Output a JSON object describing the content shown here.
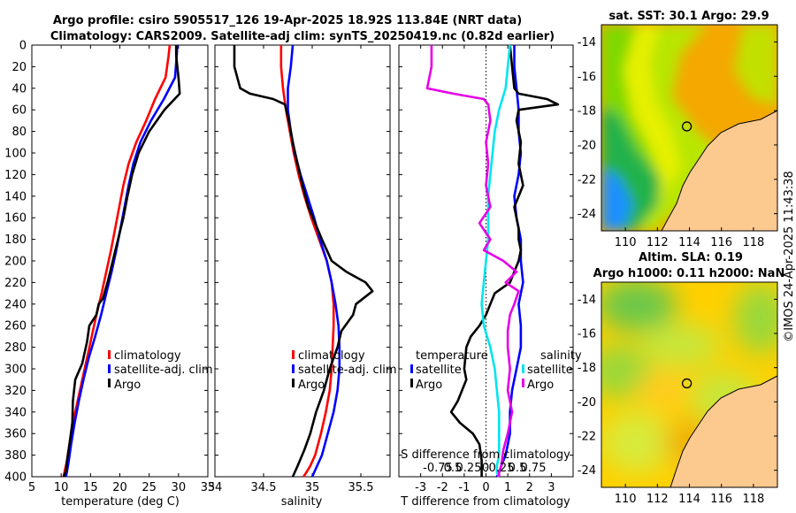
{
  "header": {
    "title_line1": "Argo profile: csiro 5905517_126 19-Apr-2025 18.92S 113.84E (NRT data)",
    "title_line2": "Climatology: CARS2009. Satellite-adj clim: synTS_20250419.nc (0.82d earlier)"
  },
  "side_stamp": "©IMOS 24-Apr-2025 11:43:38",
  "colors": {
    "climatology": "#ff0000",
    "satellite": "#0000ff",
    "argo": "#000000",
    "sat_diff_t": "#0000ff",
    "sat_diff_s": "#00e5ee",
    "argo_diff_s": "#e600e6"
  },
  "chart_data": [
    {
      "type": "line",
      "title": "",
      "xlabel": "temperature (deg C)",
      "ylabel": "",
      "xlim": [
        5,
        35
      ],
      "ylim": [
        400,
        0
      ],
      "xticks": [
        "5",
        "10",
        "15",
        "20",
        "25",
        "30",
        "35"
      ],
      "yticks": [
        "0",
        "20",
        "40",
        "60",
        "80",
        "100",
        "120",
        "140",
        "160",
        "180",
        "200",
        "220",
        "240",
        "260",
        "280",
        "300",
        "320",
        "340",
        "360",
        "380",
        "400"
      ],
      "legend": [
        "climatology",
        "satellite-adj. clim",
        "Argo"
      ],
      "series": [
        {
          "name": "climatology",
          "x": [
            28.5,
            28.3,
            27.8,
            26.0,
            24.5,
            22.8,
            21.5,
            20.6,
            19.9,
            19.2,
            18.5,
            17.7,
            16.9,
            16.0,
            15.2,
            14.4,
            13.6,
            12.8,
            12.0,
            11.4,
            11.0,
            10.6,
            10.4
          ],
          "y": [
            0,
            10,
            30,
            50,
            70,
            90,
            110,
            130,
            150,
            170,
            190,
            210,
            230,
            250,
            270,
            290,
            310,
            330,
            350,
            370,
            385,
            395,
            400
          ]
        },
        {
          "name": "satellite-adj. clim",
          "x": [
            29.8,
            29.7,
            29.4,
            27.5,
            25.3,
            23.5,
            22.3,
            21.5,
            20.8,
            20.1,
            19.4,
            18.6,
            17.7,
            16.8,
            15.8,
            14.7,
            13.8,
            13.0,
            12.3,
            11.7,
            11.3,
            11.0,
            10.8
          ],
          "y": [
            0,
            10,
            30,
            50,
            70,
            90,
            110,
            130,
            150,
            170,
            190,
            210,
            230,
            250,
            270,
            290,
            310,
            330,
            350,
            370,
            385,
            395,
            400
          ]
        },
        {
          "name": "Argo",
          "x": [
            29.6,
            29.6,
            29.8,
            30.0,
            30.2,
            27.6,
            25.0,
            23.2,
            22.1,
            21.3,
            20.6,
            19.7,
            18.8,
            17.9,
            17.1,
            16.4,
            16.0,
            14.8,
            14.4,
            13.6,
            12.4,
            12.0,
            11.9,
            11.4,
            11.0,
            10.8,
            10.6,
            10.4
          ],
          "y": [
            0,
            10,
            20,
            30,
            45,
            60,
            80,
            100,
            120,
            140,
            160,
            180,
            200,
            220,
            235,
            240,
            250,
            260,
            275,
            295,
            310,
            330,
            350,
            370,
            385,
            395,
            398,
            400
          ]
        }
      ]
    },
    {
      "type": "line",
      "title": "",
      "xlabel": "salinity",
      "xlim": [
        34,
        35.8
      ],
      "ylim": [
        400,
        0
      ],
      "xticks": [
        "34",
        "34.5",
        "35",
        "35.5"
      ],
      "legend": [
        "climatology",
        "satellite-adj. clim",
        "Argo"
      ],
      "series": [
        {
          "name": "climatology",
          "x": [
            34.68,
            34.68,
            34.7,
            34.73,
            34.77,
            34.81,
            34.86,
            34.92,
            34.99,
            35.07,
            35.15,
            35.2,
            35.22,
            35.22,
            35.21,
            35.2,
            35.18,
            35.14,
            35.09,
            35.03,
            34.98,
            34.94,
            34.91
          ],
          "y": [
            0,
            20,
            40,
            60,
            80,
            100,
            120,
            140,
            160,
            180,
            200,
            220,
            240,
            260,
            280,
            300,
            320,
            340,
            360,
            380,
            390,
            396,
            400
          ]
        },
        {
          "name": "satellite-adj. clim",
          "x": [
            34.8,
            34.78,
            34.75,
            34.75,
            34.78,
            34.82,
            34.88,
            34.95,
            35.02,
            35.08,
            35.15,
            35.2,
            35.24,
            35.27,
            35.28,
            35.28,
            35.26,
            35.22,
            35.16,
            35.1,
            35.05,
            35.02,
            35.0
          ],
          "y": [
            0,
            20,
            40,
            60,
            80,
            100,
            120,
            140,
            160,
            180,
            200,
            220,
            240,
            260,
            280,
            300,
            320,
            340,
            360,
            380,
            390,
            396,
            400
          ]
        },
        {
          "name": "Argo",
          "x": [
            34.2,
            34.2,
            34.26,
            34.36,
            34.6,
            34.72,
            34.76,
            34.8,
            34.85,
            34.9,
            34.96,
            35.03,
            35.1,
            35.15,
            35.2,
            35.35,
            35.55,
            35.62,
            35.45,
            35.42,
            35.3,
            35.26,
            35.18,
            35.12,
            35.04,
            34.98,
            34.92,
            34.85,
            34.82,
            34.8
          ],
          "y": [
            0,
            20,
            40,
            45,
            50,
            55,
            70,
            90,
            110,
            130,
            150,
            165,
            180,
            190,
            200,
            210,
            220,
            228,
            240,
            250,
            265,
            280,
            300,
            320,
            340,
            360,
            375,
            390,
            396,
            400
          ]
        }
      ]
    },
    {
      "type": "line",
      "title": "",
      "xlabel": "T difference from climatology",
      "xlabel_top": "S difference from climatology",
      "xlim": [
        -4,
        4
      ],
      "ylim": [
        400,
        0
      ],
      "xticks": [
        "-3",
        "-2",
        "-1",
        "0",
        "1",
        "2",
        "3"
      ],
      "xticks_top": [
        "-0.75",
        "0.5",
        "0.25",
        "0",
        "0.25",
        "0.5",
        "0.75"
      ],
      "legend_left_title": "temperature",
      "legend_right_title": "salinity",
      "legend": [
        "satellite",
        "Argo",
        "satellite",
        "Argo"
      ],
      "series": [
        {
          "name": "satellite (temperature)",
          "x": [
            1.3,
            1.3,
            1.4,
            1.5,
            1.5,
            1.6,
            1.5,
            1.3,
            1.4,
            1.6,
            1.6,
            1.7,
            1.5,
            1.6,
            1.6,
            1.4,
            1.2,
            1.1,
            1.1,
            0.9,
            0.7,
            0.6,
            0.5
          ],
          "y": [
            0,
            20,
            40,
            60,
            80,
            100,
            120,
            140,
            160,
            180,
            200,
            220,
            240,
            260,
            280,
            300,
            320,
            340,
            360,
            380,
            390,
            396,
            400
          ]
        },
        {
          "name": "Argo (temperature)",
          "x": [
            1.1,
            1.2,
            1.3,
            1.5,
            2.8,
            3.3,
            1.5,
            1.4,
            1.6,
            1.5,
            1.7,
            1.3,
            1.5,
            1.5,
            1.6,
            1.5,
            1.3,
            1.1,
            0.4,
            0.2,
            0.0,
            -0.3,
            -0.7,
            -0.9,
            -1.0,
            -0.9,
            -1.1,
            -1.3,
            -1.6,
            -1.2,
            -0.6,
            -0.3,
            -0.2,
            -0.2
          ],
          "y": [
            0,
            20,
            40,
            45,
            50,
            55,
            60,
            70,
            90,
            110,
            130,
            150,
            170,
            180,
            190,
            200,
            210,
            220,
            230,
            240,
            250,
            260,
            270,
            280,
            300,
            310,
            320,
            330,
            340,
            350,
            360,
            370,
            385,
            400
          ]
        },
        {
          "name": "satellite (salinity)",
          "x": [
            1.1,
            1.0,
            0.9,
            0.6,
            0.4,
            0.3,
            0.2,
            0.1,
            0.1,
            0.1,
            0.0,
            -0.1,
            -0.2,
            -0.1,
            0.2,
            0.4,
            0.5,
            0.6,
            0.6,
            0.6,
            0.5,
            0.5,
            0.6,
            0.6,
            0.6,
            0.6
          ],
          "y": [
            0,
            20,
            40,
            60,
            80,
            100,
            120,
            140,
            160,
            180,
            200,
            220,
            240,
            260,
            280,
            300,
            320,
            340,
            360,
            380,
            390,
            396,
            400,
            400,
            400,
            400
          ]
        },
        {
          "name": "Argo (salinity)",
          "x": [
            -2.5,
            -2.5,
            -2.7,
            -1.5,
            -0.1,
            0.1,
            0.2,
            0.0,
            0.1,
            0.0,
            0.2,
            -0.3,
            0.2,
            -0.1,
            0.8,
            1.4,
            0.9,
            1.5,
            1.3,
            1.1,
            1.0,
            1.0,
            1.1,
            1.0,
            1.2,
            1.0,
            0.8,
            0.7,
            0.6,
            0.6
          ],
          "y": [
            0,
            20,
            40,
            45,
            50,
            55,
            70,
            90,
            110,
            130,
            150,
            165,
            180,
            190,
            200,
            210,
            220,
            228,
            240,
            250,
            265,
            280,
            300,
            320,
            340,
            360,
            375,
            390,
            396,
            400
          ]
        }
      ]
    },
    {
      "type": "heatmap",
      "title": "sat. SST: 30.1 Argo: 29.9",
      "xticks": [
        "110",
        "112",
        "114",
        "116",
        "118"
      ],
      "yticks": [
        "-14",
        "-16",
        "-18",
        "-20",
        "-22",
        "-24"
      ],
      "xlim": [
        108.5,
        119.5
      ],
      "ylim": [
        -25,
        -13
      ],
      "marker": {
        "lon": 113.84,
        "lat": -18.92
      }
    },
    {
      "type": "heatmap",
      "title_line1": "Altim. SLA: 0.19",
      "title_line2": "Argo h1000: 0.11 h2000: NaN",
      "xticks": [
        "110",
        "112",
        "114",
        "116",
        "118"
      ],
      "yticks": [
        "-14",
        "-16",
        "-18",
        "-20",
        "-22",
        "-24"
      ],
      "xlim": [
        108.5,
        119.5
      ],
      "ylim": [
        -25,
        -13
      ],
      "marker": {
        "lon": 113.84,
        "lat": -18.92
      }
    }
  ]
}
